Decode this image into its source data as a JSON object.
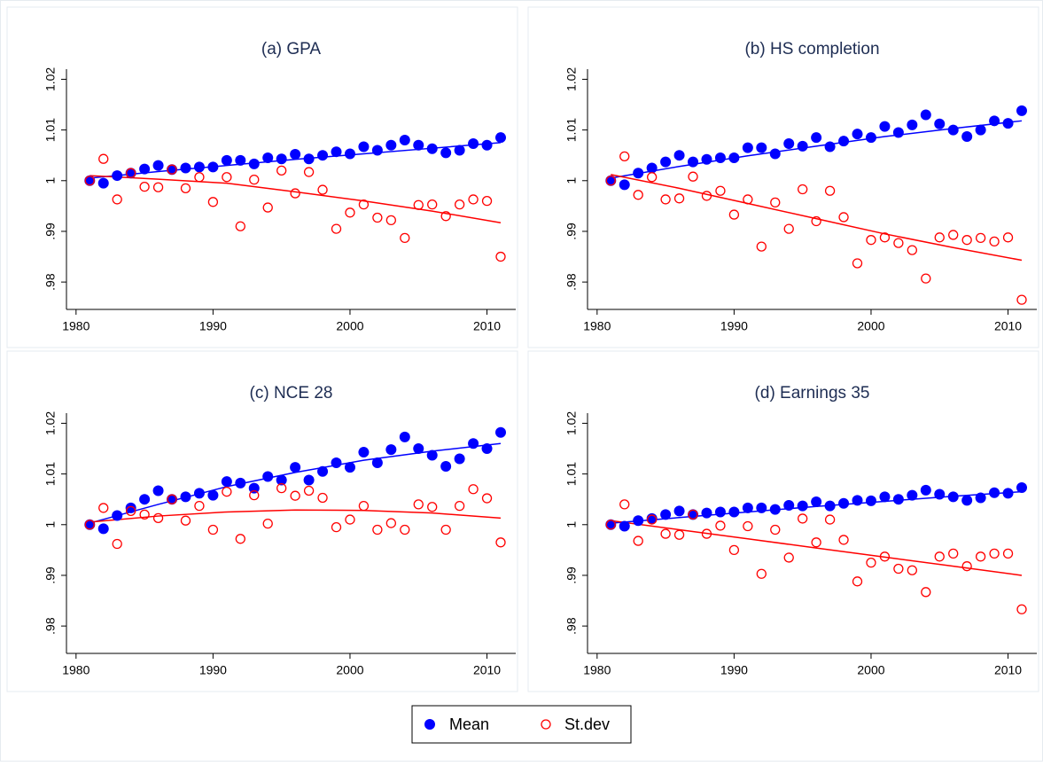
{
  "chart_data": [
    {
      "type": "scatter",
      "title": "(a) GPA",
      "x": [
        1981,
        1982,
        1983,
        1984,
        1985,
        1986,
        1987,
        1988,
        1989,
        1990,
        1991,
        1992,
        1993,
        1994,
        1995,
        1996,
        1997,
        1998,
        1999,
        2000,
        2001,
        2002,
        2003,
        2004,
        2005,
        2006,
        2007,
        2008,
        2009,
        2010,
        2011
      ],
      "trend_x": [
        1981,
        1986,
        1991,
        1996,
        2001,
        2006,
        2011
      ],
      "series": [
        {
          "name": "Mean",
          "color": "#0000ff",
          "marker": "filled",
          "values": [
            1.0,
            0.9995,
            1.001,
            1.0015,
            1.0023,
            1.003,
            1.0022,
            1.0025,
            1.0027,
            1.0027,
            1.004,
            1.004,
            1.0033,
            1.0045,
            1.0043,
            1.0052,
            1.0043,
            1.005,
            1.0057,
            1.0053,
            1.0067,
            1.006,
            1.007,
            1.008,
            1.007,
            1.0063,
            1.0055,
            1.006,
            1.0073,
            1.007,
            1.0085
          ],
          "trend": [
            1.0005,
            1.0018,
            1.003,
            1.0042,
            1.0053,
            1.0064,
            1.0075
          ]
        },
        {
          "name": "St.dev",
          "color": "#ff0000",
          "marker": "hollow",
          "values": [
            1.0,
            1.0043,
            0.9963,
            1.0015,
            0.9988,
            0.9987,
            1.0022,
            0.9985,
            1.0007,
            0.9958,
            1.0007,
            0.991,
            1.0002,
            0.9947,
            1.002,
            0.9975,
            1.0017,
            0.9982,
            0.9905,
            0.9937,
            0.9953,
            0.9927,
            0.9922,
            0.9887,
            0.9952,
            0.9953,
            0.993,
            0.9953,
            0.9963,
            0.996,
            0.985
          ],
          "trend": [
            1.001,
            1.0003,
            0.9995,
            0.9978,
            0.996,
            0.994,
            0.9917
          ]
        }
      ],
      "xlim": [
        1979.3,
        2012.1
      ],
      "ylim": [
        0.9746,
        1.022
      ],
      "xticks": [
        1980,
        1990,
        2000,
        2010
      ],
      "yticks": [
        {
          "value": 0.98,
          "label": ".98"
        },
        {
          "value": 0.99,
          "label": ".99"
        },
        1,
        1.01,
        1.02
      ]
    },
    {
      "type": "scatter",
      "title": "(b) HS completion",
      "x": [
        1981,
        1982,
        1983,
        1984,
        1985,
        1986,
        1987,
        1988,
        1989,
        1990,
        1991,
        1992,
        1993,
        1994,
        1995,
        1996,
        1997,
        1998,
        1999,
        2000,
        2001,
        2002,
        2003,
        2004,
        2005,
        2006,
        2007,
        2008,
        2009,
        2010,
        2011
      ],
      "trend_x": [
        1981,
        1986,
        1991,
        1996,
        2001,
        2006,
        2011
      ],
      "series": [
        {
          "name": "Mean",
          "color": "#0000ff",
          "marker": "filled",
          "values": [
            1.0,
            0.9992,
            1.0015,
            1.0025,
            1.0037,
            1.005,
            1.0037,
            1.0042,
            1.0045,
            1.0045,
            1.0065,
            1.0065,
            1.0053,
            1.0073,
            1.0068,
            1.0085,
            1.0067,
            1.0078,
            1.0092,
            1.0085,
            1.0107,
            1.0095,
            1.011,
            1.013,
            1.0112,
            1.01,
            1.0087,
            1.01,
            1.0118,
            1.0113,
            1.0138
          ],
          "trend": [
            1.0005,
            1.0028,
            1.0049,
            1.0068,
            1.0087,
            1.0103,
            1.0118
          ]
        },
        {
          "name": "St.dev",
          "color": "#ff0000",
          "marker": "hollow",
          "values": [
            1.0,
            1.0048,
            0.9972,
            1.0007,
            0.9963,
            0.9965,
            1.0008,
            0.997,
            0.998,
            0.9933,
            0.9963,
            0.987,
            0.9957,
            0.9905,
            0.9983,
            0.992,
            0.998,
            0.9928,
            0.9837,
            0.9883,
            0.9888,
            0.9877,
            0.9863,
            0.9807,
            0.9888,
            0.9893,
            0.9883,
            0.9887,
            0.988,
            0.9888,
            0.9765
          ],
          "trend": [
            1.0012,
            0.9985,
            0.9955,
            0.9925,
            0.9895,
            0.9868,
            0.9843
          ]
        }
      ],
      "xlim": [
        1979.3,
        2012.1
      ],
      "ylim": [
        0.9746,
        1.022
      ],
      "xticks": [
        1980,
        1990,
        2000,
        2010
      ],
      "yticks": [
        {
          "value": 0.98,
          "label": ".98"
        },
        {
          "value": 0.99,
          "label": ".99"
        },
        1,
        1.01,
        1.02
      ]
    },
    {
      "type": "scatter",
      "title": "(c) NCE 28",
      "x": [
        1981,
        1982,
        1983,
        1984,
        1985,
        1986,
        1987,
        1988,
        1989,
        1990,
        1991,
        1992,
        1993,
        1994,
        1995,
        1996,
        1997,
        1998,
        1999,
        2000,
        2001,
        2002,
        2003,
        2004,
        2005,
        2006,
        2007,
        2008,
        2009,
        2010,
        2011
      ],
      "trend_x": [
        1981,
        1986,
        1991,
        1996,
        2001,
        2006,
        2011
      ],
      "series": [
        {
          "name": "Mean",
          "color": "#0000ff",
          "marker": "filled",
          "values": [
            1.0,
            0.9992,
            1.0018,
            1.0033,
            1.005,
            1.0067,
            1.005,
            1.0055,
            1.0062,
            1.0058,
            1.0085,
            1.0082,
            1.0072,
            1.0095,
            1.0088,
            1.0113,
            1.0088,
            1.0105,
            1.0122,
            1.0113,
            1.0143,
            1.0122,
            1.0148,
            1.0173,
            1.015,
            1.0137,
            1.0115,
            1.013,
            1.016,
            1.015,
            1.0182
          ],
          "trend": [
            1.0003,
            1.004,
            1.0075,
            1.0103,
            1.0127,
            1.0145,
            1.016
          ]
        },
        {
          "name": "St.dev",
          "color": "#ff0000",
          "marker": "hollow",
          "values": [
            1.0,
            1.0033,
            0.9962,
            1.0027,
            1.002,
            1.0013,
            1.005,
            1.0008,
            1.0037,
            0.999,
            1.0065,
            0.9972,
            1.0058,
            1.0002,
            1.0072,
            1.0057,
            1.0067,
            1.0053,
            0.9995,
            1.001,
            1.0037,
            0.999,
            1.0003,
            0.999,
            1.004,
            1.0035,
            0.999,
            1.0037,
            1.007,
            1.0052,
            0.9965
          ],
          "trend": [
            1.0005,
            1.0017,
            1.0025,
            1.0029,
            1.0028,
            1.0023,
            1.0013
          ]
        }
      ],
      "xlim": [
        1979.3,
        2012.1
      ],
      "ylim": [
        0.9746,
        1.022
      ],
      "xticks": [
        1980,
        1990,
        2000,
        2010
      ],
      "yticks": [
        {
          "value": 0.98,
          "label": ".98"
        },
        {
          "value": 0.99,
          "label": ".99"
        },
        1,
        1.01,
        1.02
      ]
    },
    {
      "type": "scatter",
      "title": "(d) Earnings 35",
      "x": [
        1981,
        1982,
        1983,
        1984,
        1985,
        1986,
        1987,
        1988,
        1989,
        1990,
        1991,
        1992,
        1993,
        1994,
        1995,
        1996,
        1997,
        1998,
        1999,
        2000,
        2001,
        2002,
        2003,
        2004,
        2005,
        2006,
        2007,
        2008,
        2009,
        2010,
        2011
      ],
      "trend_x": [
        1981,
        1986,
        1991,
        1996,
        2001,
        2006,
        2011
      ],
      "series": [
        {
          "name": "Mean",
          "color": "#0000ff",
          "marker": "filled",
          "values": [
            1.0,
            0.9997,
            1.0008,
            1.0012,
            1.002,
            1.0027,
            1.002,
            1.0023,
            1.0025,
            1.0025,
            1.0033,
            1.0033,
            1.003,
            1.0038,
            1.0037,
            1.0045,
            1.0037,
            1.0042,
            1.0048,
            1.0047,
            1.0055,
            1.005,
            1.0058,
            1.0068,
            1.006,
            1.0055,
            1.0048,
            1.0053,
            1.0063,
            1.0062,
            1.0073
          ],
          "trend": [
            1.0003,
            1.0014,
            1.0025,
            1.0036,
            1.0046,
            1.0056,
            1.0065
          ]
        },
        {
          "name": "St.dev",
          "color": "#ff0000",
          "marker": "hollow",
          "values": [
            1.0,
            1.004,
            0.9968,
            1.001,
            0.9982,
            0.998,
            1.002,
            0.9982,
            0.9998,
            0.995,
            0.9997,
            0.9903,
            0.999,
            0.9935,
            1.0012,
            0.9965,
            1.001,
            0.997,
            0.9888,
            0.9925,
            0.9937,
            0.9913,
            0.991,
            0.9867,
            0.9937,
            0.9943,
            0.9918,
            0.9937,
            0.9943,
            0.9943,
            0.9833
          ],
          "trend": [
            1.0008,
            0.999,
            0.9972,
            0.9954,
            0.9936,
            0.9918,
            0.99
          ]
        }
      ],
      "xlim": [
        1979.3,
        2012.1
      ],
      "ylim": [
        0.9746,
        1.022
      ],
      "xticks": [
        1980,
        1990,
        2000,
        2010
      ],
      "yticks": [
        {
          "value": 0.98,
          "label": ".98"
        },
        {
          "value": 0.99,
          "label": ".99"
        },
        1,
        1.01,
        1.02
      ]
    }
  ]
}
